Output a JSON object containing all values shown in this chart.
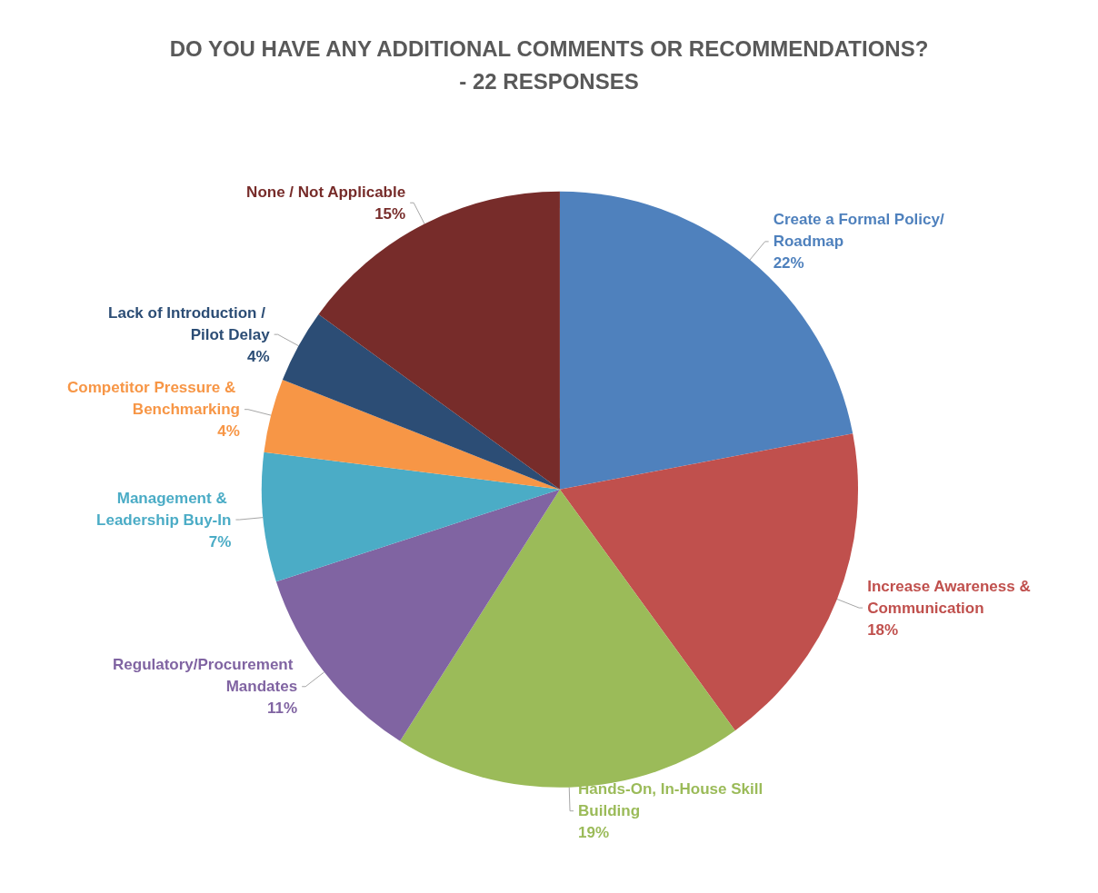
{
  "chart_data": {
    "type": "pie",
    "title": "DO YOU HAVE ANY ADDITIONAL COMMENTS OR RECOMMENDATIONS?\n- 22 RESPONSES",
    "categories": [
      "Create a Formal Policy/Roadmap",
      "Increase Awareness & Communication",
      "Hands-On, In-House Skill Building",
      "Regulatory/Procurement Mandates",
      "Management & Leadership Buy-In",
      "Competitor Pressure & Benchmarking",
      "Lack of Introduction / Pilot Delay",
      "None / Not Applicable"
    ],
    "values": [
      22,
      18,
      19,
      11,
      7,
      4,
      4,
      15
    ],
    "value_labels": [
      "22%",
      "18%",
      "19%",
      "11%",
      "7%",
      "4%",
      "4%",
      "15%"
    ],
    "colors": [
      "#4f81bd",
      "#c0504d",
      "#9bbb59",
      "#8064a2",
      "#4bacc6",
      "#f79646",
      "#2c4d75",
      "#772c2a"
    ],
    "legend": false
  }
}
